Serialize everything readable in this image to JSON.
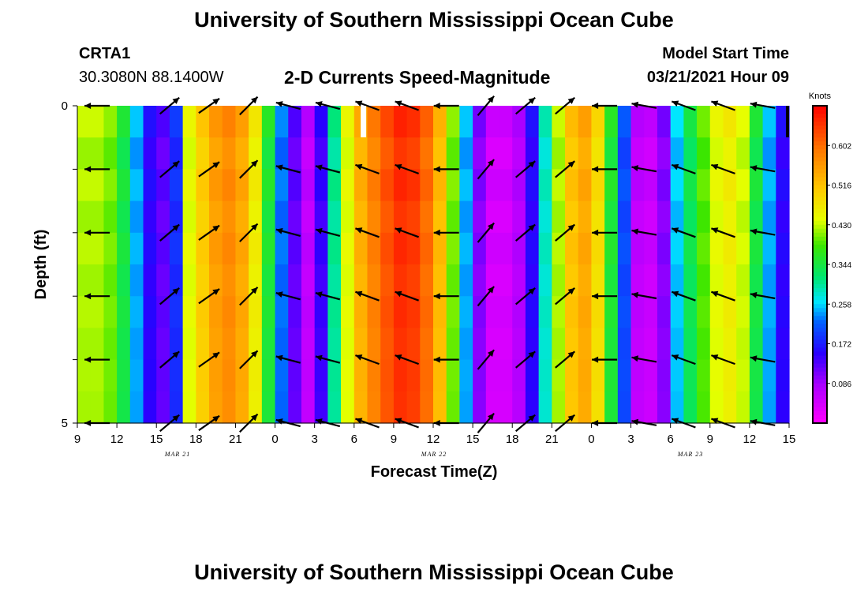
{
  "header": {
    "title": "University of Southern Mississippi Ocean Cube",
    "station": "CRTA1",
    "coords": "30.3080N 88.1400W",
    "plot_title": "2-D Currents Speed-Magnitude",
    "model_label": "Model Start Time",
    "model_time": "03/21/2021 Hour 09"
  },
  "footer": {
    "title": "University of Southern Mississippi Ocean Cube"
  },
  "chart_data": {
    "type": "heatmap",
    "title": "2-D Currents Speed-Magnitude",
    "xlabel": "Forecast Time(Z)",
    "ylabel": "Depth (ft)",
    "ylim": [
      0,
      5
    ],
    "y_tick_labels": [
      "0",
      "",
      "",
      "",
      "",
      "5"
    ],
    "x_tick_labels": [
      "9",
      "12",
      "15",
      "18",
      "21",
      "0",
      "3",
      "6",
      "9",
      "12",
      "15",
      "18",
      "21",
      "0",
      "3",
      "6",
      "9",
      "12",
      "15"
    ],
    "date_labels": [
      "MAR 21",
      "MAR 22",
      "MAR 23"
    ],
    "forecast_hours": [
      0,
      1,
      2,
      3,
      4,
      5,
      6,
      7,
      8,
      9,
      10,
      11,
      12,
      13,
      14,
      15,
      16,
      17,
      18,
      19,
      20,
      21,
      22,
      23,
      24,
      25,
      26,
      27,
      28,
      29,
      30,
      31,
      32,
      33,
      34,
      35,
      36,
      37,
      38,
      39,
      40,
      41,
      42,
      43,
      44,
      45,
      46,
      47,
      48,
      49,
      50,
      51,
      52,
      53,
      54
    ],
    "speed_knots": [
      0.42,
      0.42,
      0.4,
      0.34,
      0.24,
      0.15,
      0.12,
      0.18,
      0.44,
      0.5,
      0.55,
      0.57,
      0.54,
      0.46,
      0.35,
      0.22,
      0.12,
      0.06,
      0.14,
      0.3,
      0.44,
      0.53,
      0.58,
      0.62,
      0.65,
      0.64,
      0.6,
      0.52,
      0.4,
      0.24,
      0.1,
      0.04,
      0.04,
      0.07,
      0.15,
      0.28,
      0.42,
      0.51,
      0.54,
      0.48,
      0.35,
      0.2,
      0.06,
      0.05,
      0.1,
      0.25,
      0.33,
      0.39,
      0.44,
      0.46,
      0.43,
      0.34,
      0.24,
      0.15,
      0.08
    ],
    "colorbar": {
      "units": "Knots",
      "min": 0,
      "max": 0.688,
      "tick_labels": [
        "0.086",
        "0.172",
        "0.258",
        "0.344",
        "0.430",
        "0.516",
        "0.602"
      ]
    },
    "vector_rows_depth_ft": [
      0,
      1,
      2,
      3,
      4,
      5
    ],
    "vector_columns": [
      {
        "hour": 1.5,
        "dir_deg": 180
      },
      {
        "hour": 7,
        "dir_deg": 320
      },
      {
        "hour": 10,
        "dir_deg": 325
      },
      {
        "hour": 13,
        "dir_deg": 315
      },
      {
        "hour": 16,
        "dir_deg": 195
      },
      {
        "hour": 19,
        "dir_deg": 195
      },
      {
        "hour": 22,
        "dir_deg": 200
      },
      {
        "hour": 25,
        "dir_deg": 200
      },
      {
        "hour": 28,
        "dir_deg": 180
      },
      {
        "hour": 31,
        "dir_deg": 310
      },
      {
        "hour": 34,
        "dir_deg": 320
      },
      {
        "hour": 37,
        "dir_deg": 320
      },
      {
        "hour": 40,
        "dir_deg": 180
      },
      {
        "hour": 43,
        "dir_deg": 190
      },
      {
        "hour": 46,
        "dir_deg": 200
      },
      {
        "hour": 49,
        "dir_deg": 200
      },
      {
        "hour": 52,
        "dir_deg": 190
      }
    ]
  }
}
